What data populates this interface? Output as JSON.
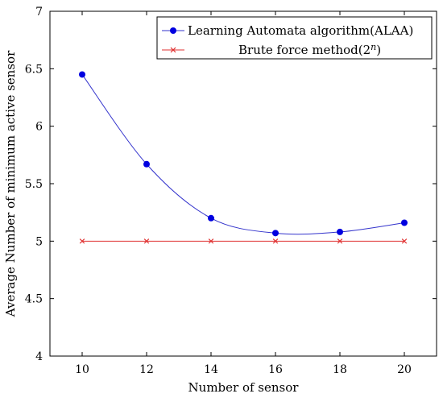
{
  "chart_data": {
    "type": "line",
    "xlabel": "Number of sensor",
    "ylabel": "Average Number of minimum active sensor",
    "xlim": [
      9,
      21
    ],
    "ylim": [
      4,
      7
    ],
    "xticks": [
      10,
      12,
      14,
      16,
      18,
      20
    ],
    "yticks": [
      4,
      4.5,
      5,
      5.5,
      6,
      6.5,
      7
    ],
    "xtick_labels": [
      "10",
      "12",
      "14",
      "16",
      "18",
      "20"
    ],
    "ytick_labels": [
      "4",
      "4.5",
      "5",
      "5.5",
      "6",
      "6.5",
      "7"
    ],
    "grid": false,
    "legend_position": "top-right",
    "series": [
      {
        "name": "Learning Automata algorithm(ALAA)",
        "color": "#3333cc",
        "marker": "circle",
        "smooth": true,
        "x": [
          10,
          12,
          14,
          16,
          18,
          20
        ],
        "values": [
          6.45,
          5.67,
          5.2,
          5.07,
          5.08,
          5.16
        ]
      },
      {
        "name_prefix": "Brute force method(2",
        "name_sup": "n",
        "name_suffix": ")",
        "color": "#e03030",
        "marker": "x",
        "smooth": false,
        "x": [
          10,
          12,
          14,
          16,
          18,
          20
        ],
        "values": [
          5,
          5,
          5,
          5,
          5,
          5
        ]
      }
    ]
  }
}
